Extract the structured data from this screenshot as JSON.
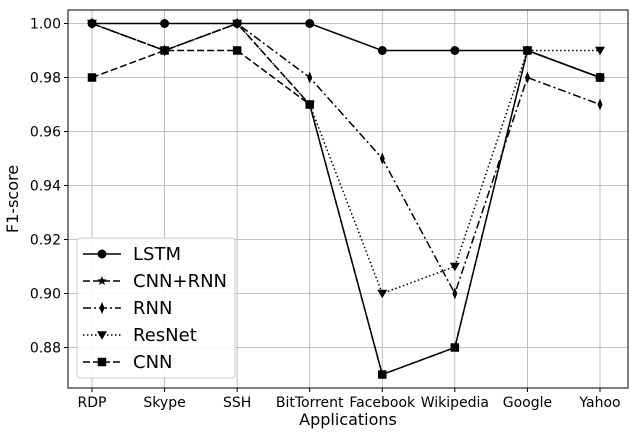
{
  "chart_data": {
    "type": "line",
    "xlabel": "Applications",
    "ylabel": "F1-score",
    "categories": [
      "RDP",
      "Skype",
      "SSH",
      "BitTorrent",
      "Facebook",
      "Wikipedia",
      "Google",
      "Yahoo"
    ],
    "ylim": [
      0.865,
      1.005
    ],
    "yticks": [
      0.88,
      0.9,
      0.92,
      0.94,
      0.96,
      0.98,
      1.0
    ],
    "ytick_labels": [
      "0.88",
      "0.90",
      "0.92",
      "0.94",
      "0.96",
      "0.98",
      "1.00"
    ],
    "grid": true,
    "legend_position": "lower-left",
    "series": [
      {
        "name": "LSTM",
        "values": [
          1.0,
          1.0,
          1.0,
          1.0,
          0.99,
          0.99,
          0.99,
          0.98
        ],
        "marker": "circle",
        "dash": "solid",
        "color": "#000000"
      },
      {
        "name": "CNN+RNN",
        "values": [
          1.0,
          0.99,
          1.0,
          0.97,
          0.87,
          0.88,
          0.99,
          0.98
        ],
        "marker": "star",
        "dash": "dashed",
        "color": "#000000"
      },
      {
        "name": "RNN",
        "values": [
          1.0,
          0.99,
          1.0,
          0.98,
          0.95,
          0.9,
          0.98,
          0.97
        ],
        "marker": "thin-diamond",
        "dash": "dashdot",
        "color": "#000000"
      },
      {
        "name": "ResNet",
        "values": [
          1.0,
          0.99,
          1.0,
          0.97,
          0.9,
          0.91,
          0.99,
          0.99
        ],
        "marker": "triangle-down",
        "dash": "dotted",
        "color": "#000000"
      },
      {
        "name": "CNN",
        "values": [
          0.98,
          0.99,
          0.99,
          0.97,
          0.87,
          0.88,
          0.99,
          0.98
        ],
        "marker": "square",
        "dash": "dashed",
        "color": "#000000"
      }
    ]
  }
}
